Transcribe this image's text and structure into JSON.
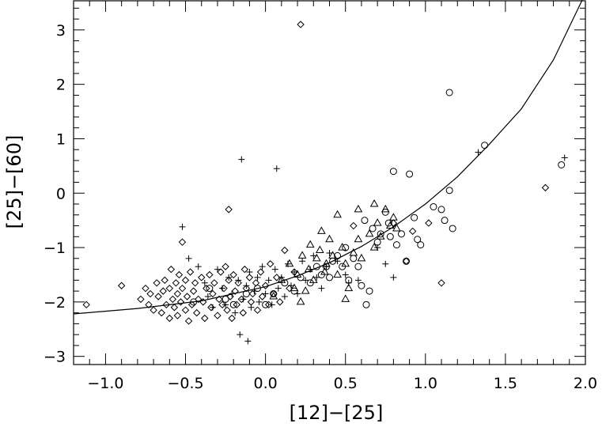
{
  "chart_data": {
    "type": "scatter",
    "title": "",
    "xlabel": "[12]−[25]",
    "ylabel": "[25]−[60]",
    "xlim": [
      -1.2,
      2.0
    ],
    "ylim": [
      -3.15,
      3.55
    ],
    "grid": false,
    "x_ticks": [
      -1.0,
      -0.5,
      0.0,
      0.5,
      1.0,
      1.5,
      2.0
    ],
    "x_tick_labels": [
      "−1.0",
      "−0.5",
      "0.0",
      "0.5",
      "1.0",
      "1.5",
      "2.0"
    ],
    "y_ticks": [
      -3,
      -2,
      -1,
      0,
      1,
      2,
      3
    ],
    "y_tick_labels": [
      "−3",
      "−2",
      "−1",
      "0",
      "1",
      "2",
      "3"
    ],
    "series": [
      {
        "marker": "diamond",
        "points": [
          [
            -1.12,
            -2.05
          ],
          [
            -0.9,
            -1.7
          ],
          [
            -0.78,
            -1.95
          ],
          [
            -0.75,
            -1.75
          ],
          [
            -0.73,
            -2.05
          ],
          [
            -0.72,
            -1.85
          ],
          [
            -0.7,
            -2.15
          ],
          [
            -0.68,
            -1.65
          ],
          [
            -0.67,
            -1.9
          ],
          [
            -0.65,
            -2.2
          ],
          [
            -0.64,
            -1.8
          ],
          [
            -0.63,
            -1.6
          ],
          [
            -0.62,
            -2.05
          ],
          [
            -0.6,
            -1.75
          ],
          [
            -0.6,
            -2.3
          ],
          [
            -0.59,
            -1.4
          ],
          [
            -0.58,
            -1.95
          ],
          [
            -0.57,
            -2.1
          ],
          [
            -0.56,
            -1.65
          ],
          [
            -0.55,
            -1.85
          ],
          [
            -0.55,
            -2.25
          ],
          [
            -0.54,
            -1.5
          ],
          [
            -0.53,
            -2.0
          ],
          [
            -0.52,
            -1.75
          ],
          [
            -0.52,
            -0.9
          ],
          [
            -0.5,
            -2.15
          ],
          [
            -0.5,
            -1.6
          ],
          [
            -0.49,
            -1.9
          ],
          [
            -0.48,
            -2.35
          ],
          [
            -0.47,
            -1.45
          ],
          [
            -0.46,
            -2.05
          ],
          [
            -0.45,
            -1.8
          ],
          [
            -0.44,
            -1.65
          ],
          [
            -0.43,
            -2.2
          ],
          [
            -0.42,
            -1.95
          ],
          [
            -0.4,
            -1.55
          ],
          [
            -0.39,
            -2.0
          ],
          [
            -0.38,
            -2.3
          ],
          [
            -0.37,
            -1.75
          ],
          [
            -0.35,
            -1.5
          ],
          [
            -0.34,
            -2.1
          ],
          [
            -0.33,
            -1.85
          ],
          [
            -0.32,
            -1.65
          ],
          [
            -0.3,
            -2.25
          ],
          [
            -0.29,
            -1.95
          ],
          [
            -0.28,
            -1.45
          ],
          [
            -0.27,
            -2.05
          ],
          [
            -0.26,
            -1.75
          ],
          [
            -0.25,
            -1.35
          ],
          [
            -0.24,
            -2.15
          ],
          [
            -0.23,
            -1.6
          ],
          [
            -0.22,
            -1.9
          ],
          [
            -0.21,
            -2.3
          ],
          [
            -0.2,
            -1.5
          ],
          [
            -0.19,
            -1.8
          ],
          [
            -0.18,
            -2.05
          ],
          [
            -0.17,
            -1.65
          ],
          [
            -0.15,
            -1.95
          ],
          [
            -0.14,
            -2.2
          ],
          [
            -0.13,
            -1.4
          ],
          [
            -0.12,
            -1.75
          ],
          [
            -0.1,
            -1.55
          ],
          [
            -0.09,
            -2.0
          ],
          [
            -0.08,
            -1.85
          ],
          [
            -0.06,
            -1.65
          ],
          [
            -0.05,
            -2.15
          ],
          [
            -0.03,
            -1.45
          ],
          [
            -0.02,
            -1.9
          ],
          [
            0.0,
            -1.7
          ],
          [
            0.02,
            -2.05
          ],
          [
            0.03,
            -1.3
          ],
          [
            0.05,
            -1.85
          ],
          [
            0.07,
            -1.55
          ],
          [
            0.09,
            -2.0
          ],
          [
            0.12,
            -1.05
          ],
          [
            0.15,
            -1.75
          ],
          [
            0.18,
            -1.45
          ],
          [
            0.22,
            3.1
          ],
          [
            -0.23,
            -0.3
          ],
          [
            0.55,
            -0.6
          ],
          [
            0.8,
            -0.55
          ],
          [
            0.88,
            -1.25
          ],
          [
            0.92,
            -0.7
          ],
          [
            1.02,
            -0.55
          ],
          [
            1.1,
            -1.65
          ],
          [
            1.75,
            0.1
          ]
        ]
      },
      {
        "marker": "plus",
        "points": [
          [
            -0.52,
            -0.62
          ],
          [
            -0.48,
            -1.2
          ],
          [
            -0.42,
            -1.35
          ],
          [
            -0.38,
            -1.65
          ],
          [
            -0.36,
            -1.9
          ],
          [
            -0.33,
            -2.1
          ],
          [
            -0.3,
            -1.4
          ],
          [
            -0.27,
            -1.75
          ],
          [
            -0.25,
            -2.05
          ],
          [
            -0.23,
            -1.55
          ],
          [
            -0.21,
            -1.85
          ],
          [
            -0.19,
            -2.2
          ],
          [
            -0.17,
            -1.6
          ],
          [
            -0.16,
            -2.6
          ],
          [
            -0.15,
            0.62
          ],
          [
            -0.14,
            -1.95
          ],
          [
            -0.12,
            -1.7
          ],
          [
            -0.11,
            -2.72
          ],
          [
            -0.1,
            -1.45
          ],
          [
            -0.09,
            -2.1
          ],
          [
            -0.07,
            -1.8
          ],
          [
            -0.05,
            -1.55
          ],
          [
            -0.04,
            -2.0
          ],
          [
            -0.02,
            -1.35
          ],
          [
            0.0,
            -1.85
          ],
          [
            0.02,
            -1.6
          ],
          [
            0.04,
            -2.05
          ],
          [
            0.06,
            -1.4
          ],
          [
            0.07,
            0.45
          ],
          [
            0.08,
            -1.75
          ],
          [
            0.1,
            -1.55
          ],
          [
            0.12,
            -1.9
          ],
          [
            0.14,
            -1.3
          ],
          [
            0.16,
            -1.7
          ],
          [
            0.18,
            -1.45
          ],
          [
            0.2,
            -1.85
          ],
          [
            0.23,
            -1.25
          ],
          [
            0.25,
            -1.6
          ],
          [
            0.28,
            -1.4
          ],
          [
            0.3,
            -1.15
          ],
          [
            0.32,
            -1.55
          ],
          [
            0.35,
            -1.75
          ],
          [
            0.38,
            -1.35
          ],
          [
            0.4,
            -1.1
          ],
          [
            0.45,
            -1.25
          ],
          [
            0.5,
            -1.5
          ],
          [
            0.52,
            -1.65
          ],
          [
            0.58,
            -1.6
          ],
          [
            0.7,
            -1.0
          ],
          [
            0.75,
            -1.3
          ],
          [
            0.8,
            -1.55
          ],
          [
            1.33,
            0.75
          ],
          [
            1.87,
            0.65
          ]
        ]
      },
      {
        "marker": "circle",
        "points": [
          [
            -0.45,
            -2.0
          ],
          [
            -0.35,
            -1.75
          ],
          [
            -0.25,
            -1.95
          ],
          [
            -0.2,
            -2.05
          ],
          [
            -0.12,
            -1.85
          ],
          [
            -0.05,
            -1.75
          ],
          [
            0.0,
            -2.05
          ],
          [
            0.05,
            -1.85
          ],
          [
            0.12,
            -1.65
          ],
          [
            0.18,
            -1.8
          ],
          [
            0.22,
            -1.55
          ],
          [
            0.28,
            -1.65
          ],
          [
            0.32,
            -1.35
          ],
          [
            0.35,
            -1.5
          ],
          [
            0.38,
            -1.35
          ],
          [
            0.4,
            -1.55
          ],
          [
            0.42,
            -1.25
          ],
          [
            0.45,
            -1.15
          ],
          [
            0.48,
            -1.35
          ],
          [
            0.5,
            -1.0
          ],
          [
            0.52,
            -1.6
          ],
          [
            0.55,
            -1.2
          ],
          [
            0.58,
            -1.35
          ],
          [
            0.6,
            -1.7
          ],
          [
            0.62,
            -0.5
          ],
          [
            0.63,
            -2.05
          ],
          [
            0.65,
            -1.8
          ],
          [
            0.67,
            -0.65
          ],
          [
            0.7,
            -0.9
          ],
          [
            0.72,
            -0.75
          ],
          [
            0.75,
            -0.35
          ],
          [
            0.77,
            -0.55
          ],
          [
            0.78,
            -0.8
          ],
          [
            0.8,
            0.4
          ],
          [
            0.82,
            -0.95
          ],
          [
            0.85,
            -0.75
          ],
          [
            0.88,
            -1.25
          ],
          [
            0.9,
            0.35
          ],
          [
            0.93,
            -0.45
          ],
          [
            0.95,
            -0.85
          ],
          [
            0.97,
            -0.95
          ],
          [
            1.05,
            -0.25
          ],
          [
            1.1,
            -0.3
          ],
          [
            1.12,
            -0.5
          ],
          [
            1.15,
            0.05
          ],
          [
            1.17,
            -0.65
          ],
          [
            1.15,
            1.85
          ],
          [
            1.37,
            0.88
          ],
          [
            1.85,
            0.52
          ]
        ]
      },
      {
        "marker": "triangle",
        "points": [
          [
            0.05,
            -1.9
          ],
          [
            0.1,
            -1.6
          ],
          [
            0.15,
            -1.3
          ],
          [
            0.18,
            -1.75
          ],
          [
            0.2,
            -1.5
          ],
          [
            0.23,
            -1.15
          ],
          [
            0.25,
            -1.8
          ],
          [
            0.27,
            -1.4
          ],
          [
            0.28,
            -0.95
          ],
          [
            0.3,
            -1.6
          ],
          [
            0.32,
            -1.2
          ],
          [
            0.34,
            -1.05
          ],
          [
            0.35,
            -0.7
          ],
          [
            0.37,
            -1.45
          ],
          [
            0.38,
            -1.3
          ],
          [
            0.4,
            -0.85
          ],
          [
            0.42,
            -1.15
          ],
          [
            0.45,
            -1.5
          ],
          [
            0.48,
            -1.0
          ],
          [
            0.5,
            -1.3
          ],
          [
            0.52,
            -1.75
          ],
          [
            0.55,
            -1.1
          ],
          [
            0.58,
            -0.85
          ],
          [
            0.6,
            -1.2
          ],
          [
            0.65,
            -0.75
          ],
          [
            0.68,
            -1.0
          ],
          [
            0.7,
            -0.55
          ],
          [
            0.72,
            -0.8
          ],
          [
            0.75,
            -0.3
          ],
          [
            0.78,
            -0.6
          ],
          [
            0.8,
            -0.45
          ],
          [
            0.82,
            -0.65
          ],
          [
            0.45,
            -0.4
          ],
          [
            0.58,
            -0.3
          ],
          [
            0.68,
            -0.2
          ],
          [
            0.22,
            -2.0
          ],
          [
            0.5,
            -1.95
          ]
        ]
      }
    ],
    "curve": {
      "points": [
        [
          -1.2,
          -2.22
        ],
        [
          -0.8,
          -2.12
        ],
        [
          -0.4,
          -1.98
        ],
        [
          0.0,
          -1.72
        ],
        [
          0.2,
          -1.52
        ],
        [
          0.4,
          -1.28
        ],
        [
          0.6,
          -0.98
        ],
        [
          0.8,
          -0.62
        ],
        [
          1.0,
          -0.2
        ],
        [
          1.2,
          0.3
        ],
        [
          1.4,
          0.9
        ],
        [
          1.6,
          1.55
        ],
        [
          1.8,
          2.45
        ],
        [
          1.98,
          3.55
        ]
      ]
    }
  }
}
